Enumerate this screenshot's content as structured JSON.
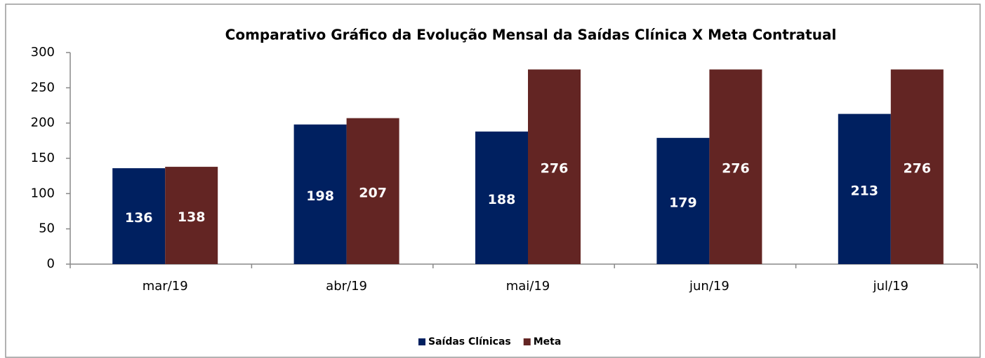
{
  "chart_data": {
    "type": "bar",
    "title": "Comparativo Gráfico da Evolução Mensal da Saídas Clínica X Meta Contratual",
    "categories": [
      "mar/19",
      "abr/19",
      "mai/19",
      "jun/19",
      "jul/19"
    ],
    "series": [
      {
        "name": "Saídas Clínicas",
        "color": "#002060",
        "values": [
          136,
          198,
          188,
          179,
          213
        ]
      },
      {
        "name": "Meta",
        "color": "#632523",
        "values": [
          138,
          207,
          276,
          276,
          276
        ]
      }
    ],
    "ylim": [
      0,
      300
    ],
    "yticks": [
      0,
      50,
      100,
      150,
      200,
      250,
      300
    ],
    "grid": false,
    "legend": "bottom"
  }
}
